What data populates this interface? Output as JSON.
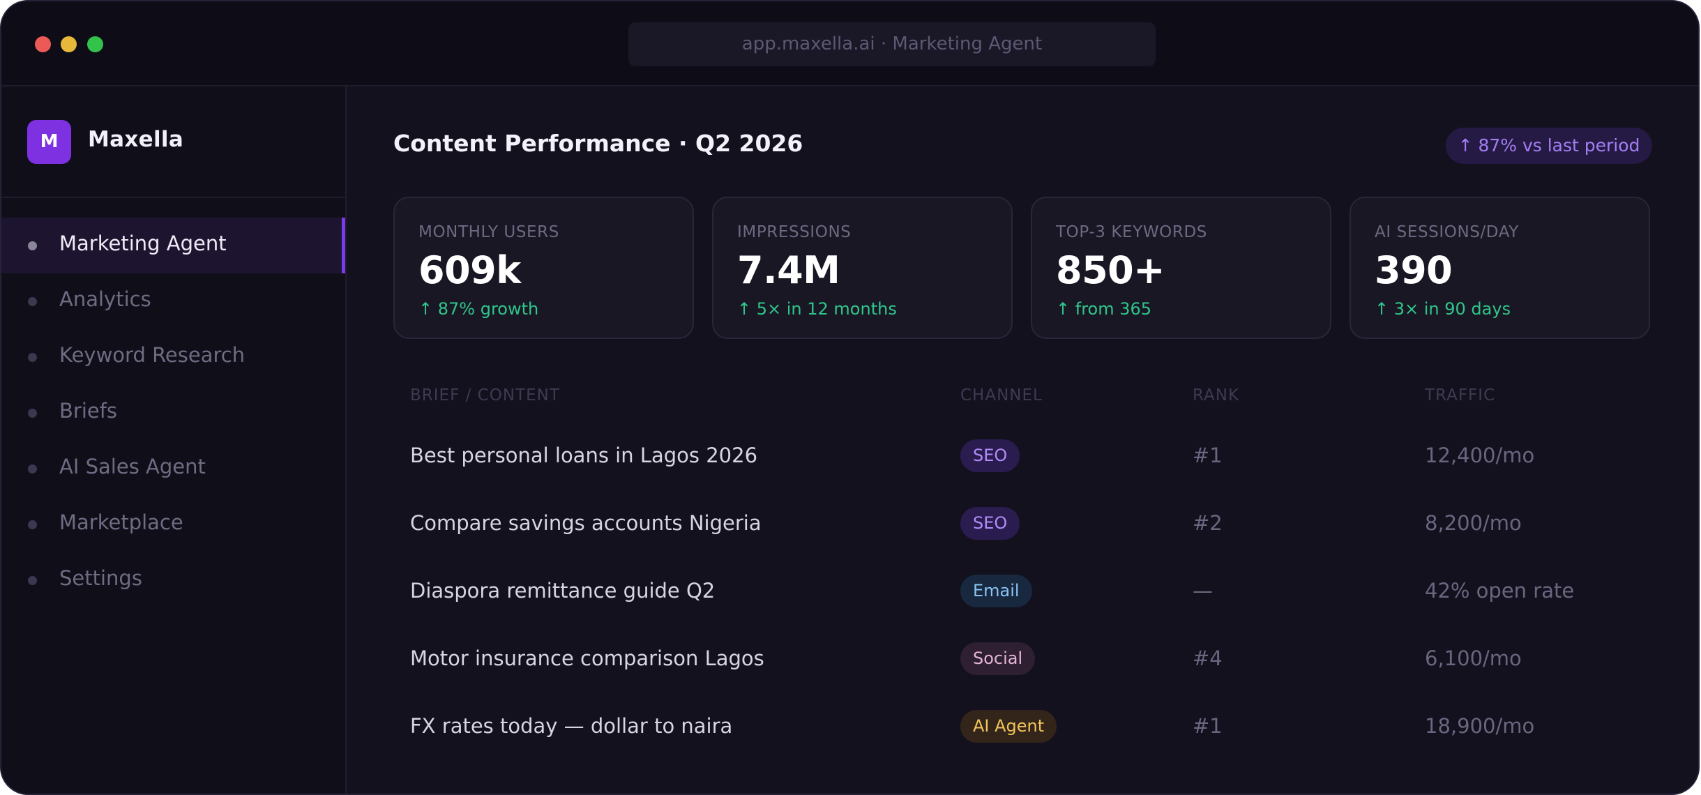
{
  "browser": {
    "url": "app.maxella.ai · Marketing Agent"
  },
  "sidebar": {
    "logo_letter": "M",
    "brand": "Maxella",
    "items": [
      {
        "label": "Marketing Agent",
        "active": true
      },
      {
        "label": "Analytics",
        "active": false
      },
      {
        "label": "Keyword Research",
        "active": false
      },
      {
        "label": "Briefs",
        "active": false
      },
      {
        "label": "AI Sales Agent",
        "active": false
      },
      {
        "label": "Marketplace",
        "active": false
      },
      {
        "label": "Settings",
        "active": false
      }
    ]
  },
  "header": {
    "title": "Content Performance · Q2 2026",
    "badge": "↑ 87% vs last period"
  },
  "stats": [
    {
      "label": "MONTHLY USERS",
      "value": "609k",
      "delta": "↑ 87% growth"
    },
    {
      "label": "IMPRESSIONS",
      "value": "7.4M",
      "delta": "↑ 5× in 12 months"
    },
    {
      "label": "TOP-3 KEYWORDS",
      "value": "850+",
      "delta": "↑ from 365"
    },
    {
      "label": "AI SESSIONS/DAY",
      "value": "390",
      "delta": "↑ 3× in 90 days"
    }
  ],
  "table": {
    "headers": {
      "content": "BRIEF / CONTENT",
      "channel": "CHANNEL",
      "rank": "RANK",
      "traffic": "TRAFFIC"
    },
    "rows": [
      {
        "title": "Best personal loans in Lagos 2026",
        "channel": "SEO",
        "rank": "#1",
        "traffic": "12,400/mo"
      },
      {
        "title": "Compare savings accounts Nigeria",
        "channel": "SEO",
        "rank": "#2",
        "traffic": "8,200/mo"
      },
      {
        "title": "Diaspora remittance guide Q2",
        "channel": "Email",
        "rank": "—",
        "traffic": "42% open rate"
      },
      {
        "title": "Motor insurance comparison Lagos",
        "channel": "Social",
        "rank": "#4",
        "traffic": "6,100/mo"
      },
      {
        "title": "FX rates today — dollar to naira",
        "channel": "AI Agent",
        "rank": "#1",
        "traffic": "18,900/mo"
      }
    ]
  },
  "colors": {
    "accent": "#7c3aed",
    "positive": "#2fc68a",
    "background": "#13111e"
  }
}
